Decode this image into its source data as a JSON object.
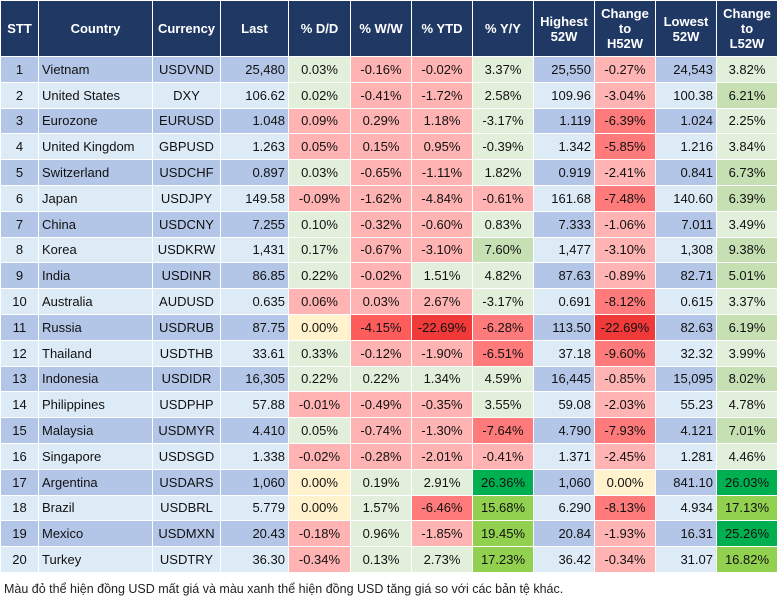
{
  "headers": [
    "STT",
    "Country",
    "Currency",
    "Last",
    "% D/D",
    "% W/W",
    "% YTD",
    "% Y/Y",
    "Highest 52W",
    "Change to H52W",
    "Lowest 52W",
    "Change to L52W"
  ],
  "header_lines": [
    [
      "STT"
    ],
    [
      "Country"
    ],
    [
      "Currency"
    ],
    [
      "Last"
    ],
    [
      "% D/D"
    ],
    [
      "% W/W"
    ],
    [
      "% YTD"
    ],
    [
      "% Y/Y"
    ],
    [
      "Highest",
      "52W"
    ],
    [
      "Change",
      "to",
      "H52W"
    ],
    [
      "Lowest",
      "52W"
    ],
    [
      "Change",
      "to",
      "L52W"
    ]
  ],
  "colors": {
    "header_bg": "#1f3864",
    "row_odd": "#b4c6e7",
    "row_even": "#ddebf7",
    "light_green": "#e2efda",
    "medium_green": "#c6e0b4",
    "green": "#92d050",
    "dark_green": "#00b050",
    "light_red": "#ffb3b3",
    "medium_red": "#ff7b7b",
    "red": "#ff5c5c",
    "dark_red": "#f03a3a",
    "yellow": "#fff2cc"
  },
  "rows": [
    {
      "stt": "1",
      "country": "Vietnam",
      "currency": "USDVND",
      "last": "25,480",
      "dd": "0.03%",
      "ww": "-0.16%",
      "ytd": "-0.02%",
      "yy": "3.37%",
      "high": "25,550",
      "ch": "-0.27%",
      "low": "24,543",
      "cl": "3.82%",
      "shade": [
        "lg",
        "lr",
        "lr",
        "lg",
        "lr",
        "lg"
      ]
    },
    {
      "stt": "2",
      "country": "United States",
      "currency": "DXY",
      "last": "106.62",
      "dd": "0.02%",
      "ww": "-0.41%",
      "ytd": "-1.72%",
      "yy": "2.58%",
      "high": "109.96",
      "ch": "-3.04%",
      "low": "100.38",
      "cl": "6.21%",
      "shade": [
        "lg",
        "lr",
        "lr",
        "lg",
        "lr",
        "mg"
      ]
    },
    {
      "stt": "3",
      "country": "Eurozone",
      "currency": "EURUSD",
      "last": "1.048",
      "dd": "0.09%",
      "ww": "0.29%",
      "ytd": "1.18%",
      "yy": "-3.17%",
      "high": "1.119",
      "ch": "-6.39%",
      "low": "1.024",
      "cl": "2.25%",
      "shade": [
        "lr",
        "lr",
        "lr",
        "lg",
        "mr",
        "lg"
      ]
    },
    {
      "stt": "4",
      "country": "United Kingdom",
      "currency": "GBPUSD",
      "last": "1.263",
      "dd": "0.05%",
      "ww": "0.15%",
      "ytd": "0.95%",
      "yy": "-0.39%",
      "high": "1.342",
      "ch": "-5.85%",
      "low": "1.216",
      "cl": "3.84%",
      "shade": [
        "lr",
        "lr",
        "lr",
        "lg",
        "mr",
        "lg"
      ]
    },
    {
      "stt": "5",
      "country": "Switzerland",
      "currency": "USDCHF",
      "last": "0.897",
      "dd": "0.03%",
      "ww": "-0.65%",
      "ytd": "-1.11%",
      "yy": "1.82%",
      "high": "0.919",
      "ch": "-2.41%",
      "low": "0.841",
      "cl": "6.73%",
      "shade": [
        "lg",
        "lr",
        "lr",
        "lg",
        "lr",
        "mg"
      ]
    },
    {
      "stt": "6",
      "country": "Japan",
      "currency": "USDJPY",
      "last": "149.58",
      "dd": "-0.09%",
      "ww": "-1.62%",
      "ytd": "-4.84%",
      "yy": "-0.61%",
      "high": "161.68",
      "ch": "-7.48%",
      "low": "140.60",
      "cl": "6.39%",
      "shade": [
        "lr",
        "lr",
        "lr",
        "lr",
        "mr",
        "mg"
      ]
    },
    {
      "stt": "7",
      "country": "China",
      "currency": "USDCNY",
      "last": "7.255",
      "dd": "0.10%",
      "ww": "-0.32%",
      "ytd": "-0.60%",
      "yy": "0.83%",
      "high": "7.333",
      "ch": "-1.06%",
      "low": "7.011",
      "cl": "3.49%",
      "shade": [
        "lg",
        "lr",
        "lr",
        "lg",
        "lr",
        "lg"
      ]
    },
    {
      "stt": "8",
      "country": "Korea",
      "currency": "USDKRW",
      "last": "1,431",
      "dd": "0.17%",
      "ww": "-0.67%",
      "ytd": "-3.10%",
      "yy": "7.60%",
      "high": "1,477",
      "ch": "-3.10%",
      "low": "1,308",
      "cl": "9.38%",
      "shade": [
        "lg",
        "lr",
        "lr",
        "mg",
        "lr",
        "mg"
      ]
    },
    {
      "stt": "9",
      "country": "India",
      "currency": "USDINR",
      "last": "86.85",
      "dd": "0.22%",
      "ww": "-0.02%",
      "ytd": "1.51%",
      "yy": "4.82%",
      "high": "87.63",
      "ch": "-0.89%",
      "low": "82.71",
      "cl": "5.01%",
      "shade": [
        "lg",
        "lr",
        "lg",
        "lg",
        "lr",
        "mg"
      ]
    },
    {
      "stt": "10",
      "country": "Australia",
      "currency": "AUDUSD",
      "last": "0.635",
      "dd": "0.06%",
      "ww": "0.03%",
      "ytd": "2.67%",
      "yy": "-3.17%",
      "high": "0.691",
      "ch": "-8.12%",
      "low": "0.615",
      "cl": "3.37%",
      "shade": [
        "lr",
        "lr",
        "lr",
        "lg",
        "mr",
        "lg"
      ]
    },
    {
      "stt": "11",
      "country": "Russia",
      "currency": "USDRUB",
      "last": "87.75",
      "dd": "0.00%",
      "ww": "-4.15%",
      "ytd": "-22.69%",
      "yy": "-6.28%",
      "high": "113.50",
      "ch": "-22.69%",
      "low": "82.63",
      "cl": "6.19%",
      "shade": [
        "y",
        "r2",
        "dr",
        "mr",
        "dr",
        "mg"
      ]
    },
    {
      "stt": "12",
      "country": "Thailand",
      "currency": "USDTHB",
      "last": "33.61",
      "dd": "0.33%",
      "ww": "-0.12%",
      "ytd": "-1.90%",
      "yy": "-6.51%",
      "high": "37.18",
      "ch": "-9.60%",
      "low": "32.32",
      "cl": "3.99%",
      "shade": [
        "lg",
        "lr",
        "lr",
        "mr",
        "mr",
        "lg"
      ]
    },
    {
      "stt": "13",
      "country": "Indonesia",
      "currency": "USDIDR",
      "last": "16,305",
      "dd": "0.22%",
      "ww": "0.22%",
      "ytd": "1.34%",
      "yy": "4.59%",
      "high": "16,445",
      "ch": "-0.85%",
      "low": "15,095",
      "cl": "8.02%",
      "shade": [
        "lg",
        "lg",
        "lg",
        "lg",
        "lr",
        "mg"
      ]
    },
    {
      "stt": "14",
      "country": "Philippines",
      "currency": "USDPHP",
      "last": "57.88",
      "dd": "-0.01%",
      "ww": "-0.49%",
      "ytd": "-0.35%",
      "yy": "3.55%",
      "high": "59.08",
      "ch": "-2.03%",
      "low": "55.23",
      "cl": "4.78%",
      "shade": [
        "lr",
        "lr",
        "lr",
        "lg",
        "lr",
        "lg"
      ]
    },
    {
      "stt": "15",
      "country": "Malaysia",
      "currency": "USDMYR",
      "last": "4.410",
      "dd": "0.05%",
      "ww": "-0.74%",
      "ytd": "-1.30%",
      "yy": "-7.64%",
      "high": "4.790",
      "ch": "-7.93%",
      "low": "4.121",
      "cl": "7.01%",
      "shade": [
        "lg",
        "lr",
        "lr",
        "mr",
        "mr",
        "mg"
      ]
    },
    {
      "stt": "16",
      "country": "Singapore",
      "currency": "USDSGD",
      "last": "1.338",
      "dd": "-0.02%",
      "ww": "-0.28%",
      "ytd": "-2.01%",
      "yy": "-0.41%",
      "high": "1.371",
      "ch": "-2.45%",
      "low": "1.281",
      "cl": "4.46%",
      "shade": [
        "lr",
        "lr",
        "lr",
        "lr",
        "lr",
        "lg"
      ]
    },
    {
      "stt": "17",
      "country": "Argentina",
      "currency": "USDARS",
      "last": "1,060",
      "dd": "0.00%",
      "ww": "0.19%",
      "ytd": "2.91%",
      "yy": "26.36%",
      "high": "1,060",
      "ch": "0.00%",
      "low": "841.10",
      "cl": "26.03%",
      "shade": [
        "y",
        "lg",
        "lg",
        "dg",
        "y",
        "dg"
      ]
    },
    {
      "stt": "18",
      "country": "Brazil",
      "currency": "USDBRL",
      "last": "5.779",
      "dd": "0.00%",
      "ww": "1.57%",
      "ytd": "-6.46%",
      "yy": "15.68%",
      "high": "6.290",
      "ch": "-8.13%",
      "low": "4.934",
      "cl": "17.13%",
      "shade": [
        "y",
        "lg",
        "mr",
        "g",
        "mr",
        "g"
      ]
    },
    {
      "stt": "19",
      "country": "Mexico",
      "currency": "USDMXN",
      "last": "20.43",
      "dd": "-0.18%",
      "ww": "0.96%",
      "ytd": "-1.85%",
      "yy": "19.45%",
      "high": "20.84",
      "ch": "-1.93%",
      "low": "16.31",
      "cl": "25.26%",
      "shade": [
        "lr",
        "lg",
        "lr",
        "g",
        "lr",
        "dg"
      ]
    },
    {
      "stt": "20",
      "country": "Turkey",
      "currency": "USDTRY",
      "last": "36.30",
      "dd": "-0.34%",
      "ww": "0.13%",
      "ytd": "2.73%",
      "yy": "17.23%",
      "high": "36.42",
      "ch": "-0.34%",
      "low": "31.07",
      "cl": "16.82%",
      "shade": [
        "lr",
        "lg",
        "lg",
        "g",
        "lr",
        "g"
      ]
    }
  ],
  "footnote": "Màu đỏ thể hiện đồng USD mất giá và màu xanh thể hiện đồng USD tăng giá so với các bản tệ khác."
}
